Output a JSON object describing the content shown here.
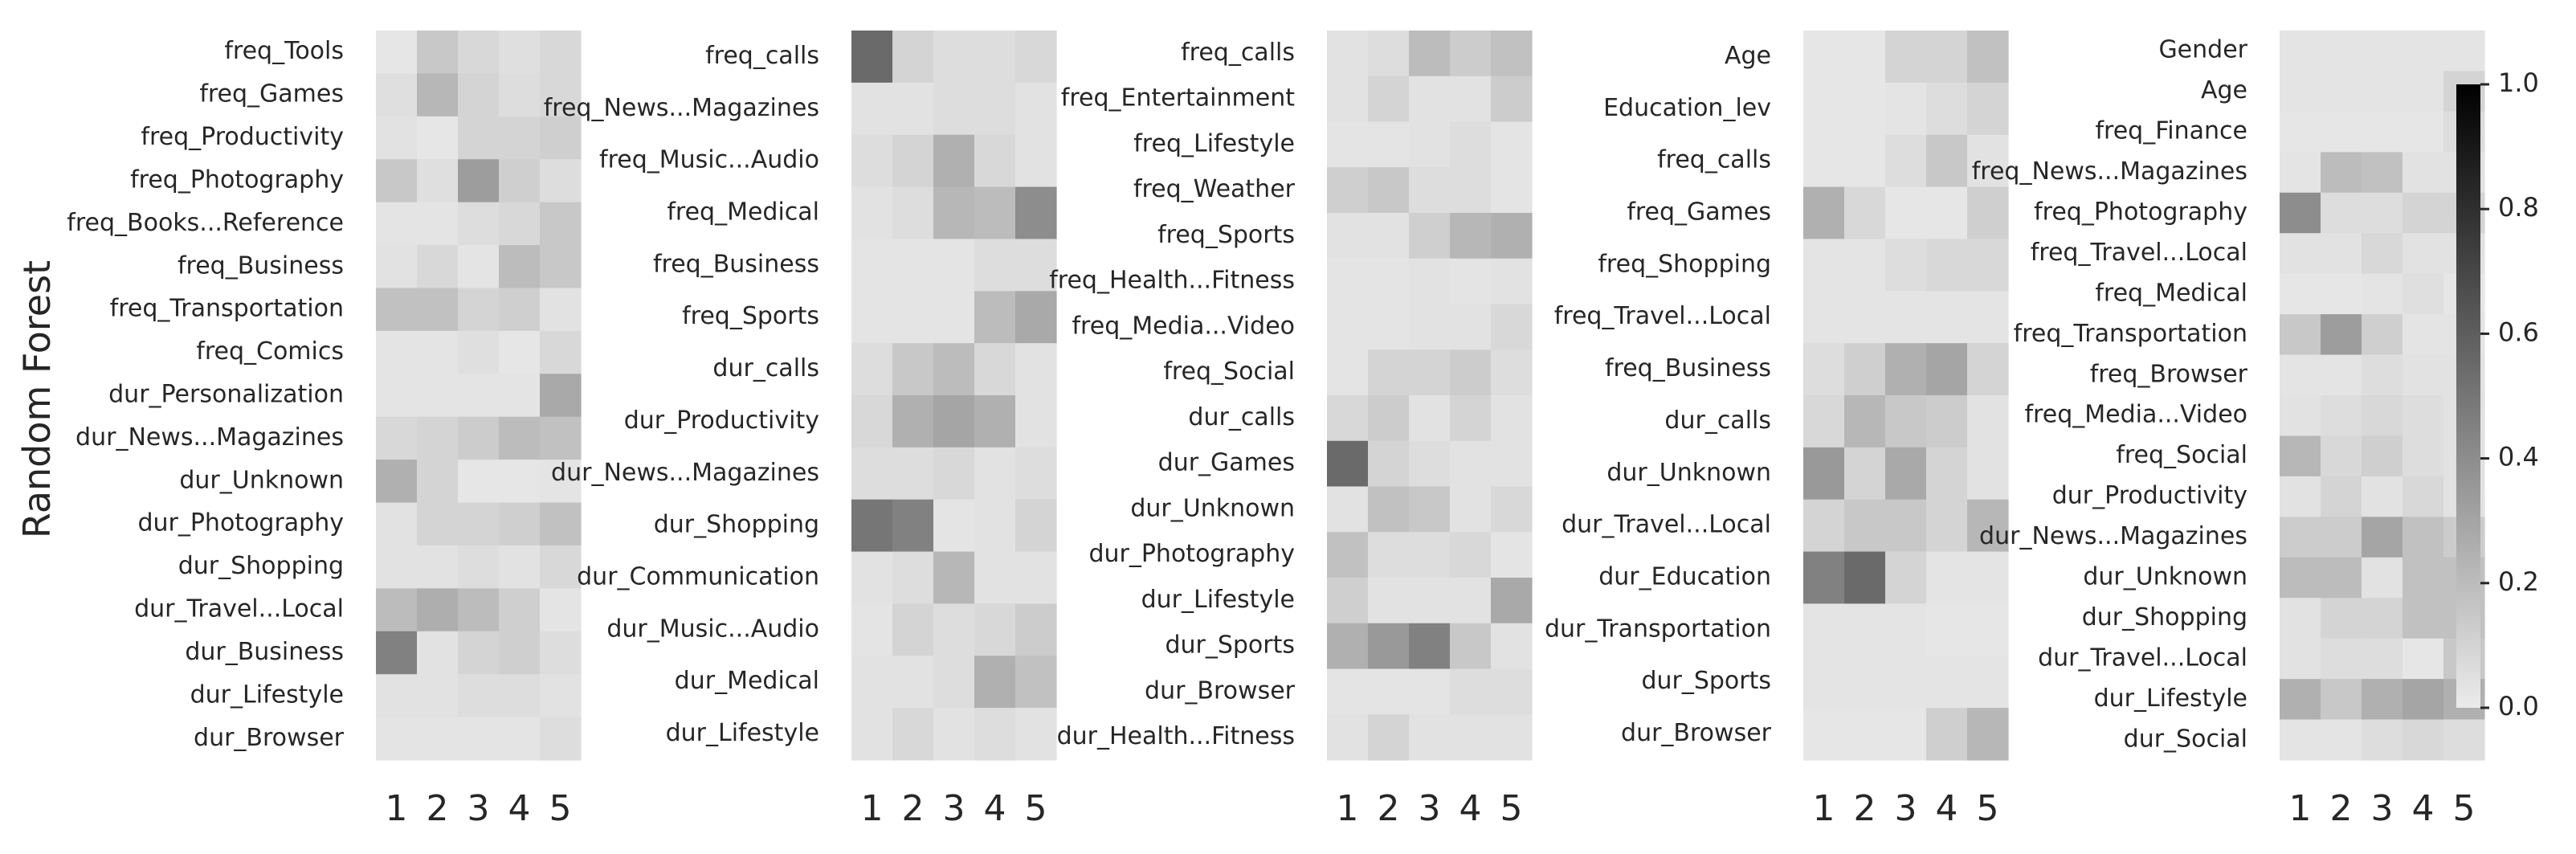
{
  "figure": {
    "ylabel": "Random Forest",
    "colorbar": {
      "ticks": [
        "1.0",
        "0.8",
        "0.6",
        "0.4",
        "0.2",
        "0.0"
      ],
      "tick_values": [
        1.0,
        0.8,
        0.6,
        0.4,
        0.2,
        0.0
      ],
      "vmin": 0.0,
      "vmax": 1.0,
      "colormap": [
        "#ebebeb",
        "#000000"
      ]
    }
  },
  "chart_data": [
    {
      "type": "heatmap",
      "x": [
        "1",
        "2",
        "3",
        "4",
        "5"
      ],
      "y": [
        "freq_Tools",
        "freq_Games",
        "freq_Productivity",
        "freq_Photography",
        "freq_Books...Reference",
        "freq_Business",
        "freq_Transportation",
        "freq_Comics",
        "dur_Personalization",
        "dur_News...Magazines",
        "dur_Unknown",
        "dur_Photography",
        "dur_Shopping",
        "dur_Travel...Local",
        "dur_Business",
        "dur_Lifestyle",
        "dur_Browser"
      ],
      "values": [
        [
          0.02,
          0.15,
          0.08,
          0.05,
          0.08
        ],
        [
          0.05,
          0.22,
          0.1,
          0.06,
          0.08
        ],
        [
          0.04,
          0.02,
          0.1,
          0.1,
          0.12
        ],
        [
          0.15,
          0.05,
          0.33,
          0.12,
          0.06
        ],
        [
          0.03,
          0.03,
          0.06,
          0.08,
          0.15
        ],
        [
          0.04,
          0.08,
          0.03,
          0.2,
          0.15
        ],
        [
          0.18,
          0.18,
          0.1,
          0.12,
          0.04
        ],
        [
          0.03,
          0.03,
          0.05,
          0.02,
          0.08
        ],
        [
          0.03,
          0.03,
          0.03,
          0.03,
          0.28
        ],
        [
          0.08,
          0.1,
          0.13,
          0.2,
          0.18
        ],
        [
          0.25,
          0.1,
          0.02,
          0.02,
          0.03
        ],
        [
          0.04,
          0.1,
          0.1,
          0.12,
          0.18
        ],
        [
          0.04,
          0.04,
          0.06,
          0.04,
          0.08
        ],
        [
          0.2,
          0.26,
          0.2,
          0.12,
          0.03
        ],
        [
          0.45,
          0.04,
          0.1,
          0.12,
          0.06
        ],
        [
          0.04,
          0.04,
          0.06,
          0.06,
          0.04
        ],
        [
          0.03,
          0.03,
          0.03,
          0.03,
          0.06
        ]
      ]
    },
    {
      "type": "heatmap",
      "x": [
        "1",
        "2",
        "3",
        "4",
        "5"
      ],
      "y": [
        "freq_calls",
        "freq_News...Magazines",
        "freq_Music...Audio",
        "freq_Medical",
        "freq_Business",
        "freq_Sports",
        "dur_calls",
        "dur_Productivity",
        "dur_News...Magazines",
        "dur_Shopping",
        "dur_Communication",
        "dur_Music...Audio",
        "dur_Medical",
        "dur_Lifestyle"
      ],
      "values": [
        [
          0.55,
          0.1,
          0.06,
          0.06,
          0.08
        ],
        [
          0.04,
          0.04,
          0.06,
          0.06,
          0.04
        ],
        [
          0.06,
          0.1,
          0.25,
          0.08,
          0.04
        ],
        [
          0.04,
          0.06,
          0.22,
          0.2,
          0.4
        ],
        [
          0.03,
          0.03,
          0.03,
          0.06,
          0.06
        ],
        [
          0.03,
          0.03,
          0.03,
          0.2,
          0.28
        ],
        [
          0.06,
          0.15,
          0.2,
          0.08,
          0.04
        ],
        [
          0.08,
          0.25,
          0.3,
          0.25,
          0.04
        ],
        [
          0.06,
          0.06,
          0.08,
          0.04,
          0.06
        ],
        [
          0.5,
          0.45,
          0.03,
          0.04,
          0.1
        ],
        [
          0.04,
          0.06,
          0.22,
          0.04,
          0.04
        ],
        [
          0.03,
          0.1,
          0.06,
          0.08,
          0.13
        ],
        [
          0.04,
          0.04,
          0.06,
          0.25,
          0.18
        ],
        [
          0.04,
          0.08,
          0.04,
          0.06,
          0.04
        ]
      ]
    },
    {
      "type": "heatmap",
      "x": [
        "1",
        "2",
        "3",
        "4",
        "5"
      ],
      "y": [
        "freq_calls",
        "freq_Entertainment",
        "freq_Lifestyle",
        "freq_Weather",
        "freq_Sports",
        "freq_Health...Fitness",
        "freq_Media...Video",
        "freq_Social",
        "dur_calls",
        "dur_Games",
        "dur_Unknown",
        "dur_Photography",
        "dur_Lifestyle",
        "dur_Sports",
        "dur_Browser",
        "dur_Health...Fitness"
      ],
      "values": [
        [
          0.04,
          0.06,
          0.2,
          0.13,
          0.18
        ],
        [
          0.04,
          0.1,
          0.04,
          0.04,
          0.13
        ],
        [
          0.03,
          0.03,
          0.04,
          0.06,
          0.03
        ],
        [
          0.12,
          0.15,
          0.06,
          0.06,
          0.03
        ],
        [
          0.04,
          0.04,
          0.12,
          0.22,
          0.25
        ],
        [
          0.03,
          0.03,
          0.04,
          0.03,
          0.04
        ],
        [
          0.03,
          0.03,
          0.04,
          0.04,
          0.08
        ],
        [
          0.03,
          0.1,
          0.1,
          0.13,
          0.06
        ],
        [
          0.08,
          0.13,
          0.04,
          0.1,
          0.04
        ],
        [
          0.55,
          0.1,
          0.06,
          0.04,
          0.04
        ],
        [
          0.04,
          0.18,
          0.15,
          0.04,
          0.08
        ],
        [
          0.18,
          0.06,
          0.06,
          0.08,
          0.03
        ],
        [
          0.12,
          0.04,
          0.04,
          0.04,
          0.28
        ],
        [
          0.25,
          0.35,
          0.45,
          0.15,
          0.04
        ],
        [
          0.03,
          0.03,
          0.03,
          0.06,
          0.06
        ],
        [
          0.04,
          0.1,
          0.04,
          0.04,
          0.04
        ]
      ]
    },
    {
      "type": "heatmap",
      "x": [
        "1",
        "2",
        "3",
        "4",
        "5"
      ],
      "y": [
        "Age",
        "Education_lev",
        "freq_calls",
        "freq_Games",
        "freq_Shopping",
        "freq_Travel...Local",
        "freq_Business",
        "dur_calls",
        "dur_Unknown",
        "dur_Travel...Local",
        "dur_Education",
        "dur_Transportation",
        "dur_Sports",
        "dur_Browser"
      ],
      "values": [
        [
          0.02,
          0.02,
          0.1,
          0.1,
          0.18
        ],
        [
          0.02,
          0.02,
          0.03,
          0.06,
          0.1
        ],
        [
          0.02,
          0.02,
          0.06,
          0.15,
          0.04
        ],
        [
          0.25,
          0.08,
          0.02,
          0.02,
          0.12
        ],
        [
          0.03,
          0.03,
          0.06,
          0.08,
          0.08
        ],
        [
          0.03,
          0.03,
          0.03,
          0.03,
          0.03
        ],
        [
          0.06,
          0.12,
          0.25,
          0.3,
          0.1
        ],
        [
          0.08,
          0.22,
          0.15,
          0.13,
          0.04
        ],
        [
          0.35,
          0.1,
          0.28,
          0.1,
          0.04
        ],
        [
          0.1,
          0.15,
          0.15,
          0.1,
          0.22
        ],
        [
          0.45,
          0.55,
          0.1,
          0.03,
          0.03
        ],
        [
          0.03,
          0.03,
          0.03,
          0.02,
          0.02
        ],
        [
          0.03,
          0.03,
          0.03,
          0.03,
          0.03
        ],
        [
          0.02,
          0.02,
          0.02,
          0.12,
          0.22
        ]
      ]
    },
    {
      "type": "heatmap",
      "x": [
        "1",
        "2",
        "3",
        "4",
        "5"
      ],
      "y": [
        "Gender",
        "Age",
        "freq_Finance",
        "freq_News...Magazines",
        "freq_Photography",
        "freq_Travel...Local",
        "freq_Medical",
        "freq_Transportation",
        "freq_Browser",
        "freq_Media...Video",
        "freq_Social",
        "dur_Productivity",
        "dur_News...Magazines",
        "dur_Unknown",
        "dur_Shopping",
        "dur_Travel...Local",
        "dur_Lifestyle",
        "dur_Social"
      ],
      "values": [
        [
          0.03,
          0.03,
          0.03,
          0.03,
          0.03
        ],
        [
          0.03,
          0.03,
          0.03,
          0.03,
          0.1
        ],
        [
          0.02,
          0.02,
          0.02,
          0.02,
          0.06
        ],
        [
          0.03,
          0.2,
          0.18,
          0.04,
          0.04
        ],
        [
          0.4,
          0.06,
          0.06,
          0.1,
          0.1
        ],
        [
          0.04,
          0.04,
          0.08,
          0.04,
          0.04
        ],
        [
          0.02,
          0.02,
          0.03,
          0.05,
          0.02
        ],
        [
          0.15,
          0.33,
          0.12,
          0.03,
          0.03
        ],
        [
          0.03,
          0.03,
          0.06,
          0.04,
          0.04
        ],
        [
          0.04,
          0.06,
          0.08,
          0.06,
          0.04
        ],
        [
          0.22,
          0.08,
          0.12,
          0.06,
          0.04
        ],
        [
          0.04,
          0.1,
          0.04,
          0.08,
          0.04
        ],
        [
          0.13,
          0.13,
          0.3,
          0.18,
          0.13
        ],
        [
          0.2,
          0.2,
          0.04,
          0.18,
          0.18
        ],
        [
          0.04,
          0.1,
          0.1,
          0.18,
          0.18
        ],
        [
          0.04,
          0.06,
          0.06,
          0.02,
          0.15
        ],
        [
          0.25,
          0.15,
          0.25,
          0.3,
          0.25
        ],
        [
          0.03,
          0.03,
          0.06,
          0.08,
          0.06
        ]
      ]
    }
  ]
}
